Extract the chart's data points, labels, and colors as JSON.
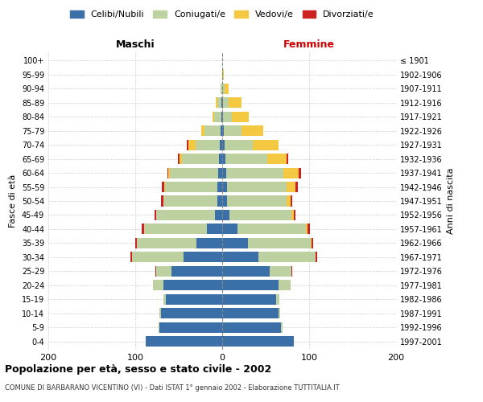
{
  "age_groups": [
    "0-4",
    "5-9",
    "10-14",
    "15-19",
    "20-24",
    "25-29",
    "30-34",
    "35-39",
    "40-44",
    "45-49",
    "50-54",
    "55-59",
    "60-64",
    "65-69",
    "70-74",
    "75-79",
    "80-84",
    "85-89",
    "90-94",
    "95-99",
    "100+"
  ],
  "birth_years": [
    "1997-2001",
    "1992-1996",
    "1987-1991",
    "1982-1986",
    "1977-1981",
    "1972-1976",
    "1967-1971",
    "1962-1966",
    "1957-1961",
    "1952-1956",
    "1947-1951",
    "1942-1946",
    "1937-1941",
    "1932-1936",
    "1927-1931",
    "1922-1926",
    "1917-1921",
    "1912-1916",
    "1907-1911",
    "1902-1906",
    "≤ 1901"
  ],
  "males": {
    "celibi": [
      88,
      72,
      70,
      65,
      68,
      58,
      44,
      30,
      18,
      8,
      6,
      6,
      5,
      4,
      3,
      2,
      1,
      1,
      0,
      0,
      0
    ],
    "coniugati": [
      0,
      1,
      2,
      3,
      12,
      18,
      60,
      68,
      72,
      68,
      62,
      60,
      55,
      42,
      28,
      18,
      8,
      5,
      2,
      0,
      0
    ],
    "vedovi": [
      0,
      0,
      0,
      0,
      0,
      0,
      0,
      0,
      0,
      0,
      0,
      1,
      2,
      3,
      8,
      4,
      2,
      1,
      0,
      0,
      0
    ],
    "divorziati": [
      0,
      0,
      0,
      0,
      0,
      1,
      2,
      2,
      3,
      2,
      2,
      2,
      1,
      2,
      2,
      0,
      0,
      0,
      0,
      0,
      0
    ]
  },
  "females": {
    "nubili": [
      82,
      68,
      65,
      62,
      65,
      55,
      42,
      30,
      18,
      8,
      6,
      6,
      5,
      4,
      3,
      2,
      1,
      1,
      0,
      0,
      0
    ],
    "coniugate": [
      0,
      1,
      2,
      4,
      14,
      25,
      65,
      72,
      78,
      72,
      68,
      68,
      65,
      48,
      32,
      20,
      10,
      6,
      3,
      1,
      0
    ],
    "vedove": [
      0,
      0,
      0,
      0,
      0,
      0,
      0,
      1,
      2,
      2,
      5,
      10,
      18,
      22,
      30,
      25,
      20,
      15,
      4,
      1,
      0
    ],
    "divorziate": [
      0,
      0,
      0,
      0,
      0,
      1,
      2,
      2,
      3,
      2,
      2,
      3,
      3,
      2,
      0,
      0,
      0,
      0,
      0,
      0,
      0
    ]
  },
  "colors": {
    "celibi": "#3a6fa8",
    "coniugati": "#bdd09f",
    "vedovi": "#f5c842",
    "divorziati": "#cc2222"
  },
  "xlim": 200,
  "title": "Popolazione per età, sesso e stato civile - 2002",
  "subtitle": "COMUNE DI BARBARANO VICENTINO (VI) - Dati ISTAT 1° gennaio 2002 - Elaborazione TUTTITALIA.IT",
  "ylabel_left": "Fasce di età",
  "ylabel_right": "Anni di nascita",
  "legend_labels": [
    "Celibi/Nubili",
    "Coniugati/e",
    "Vedovi/e",
    "Divorziati/e"
  ],
  "maschi_label": "Maschi",
  "femmine_label": "Femmine"
}
